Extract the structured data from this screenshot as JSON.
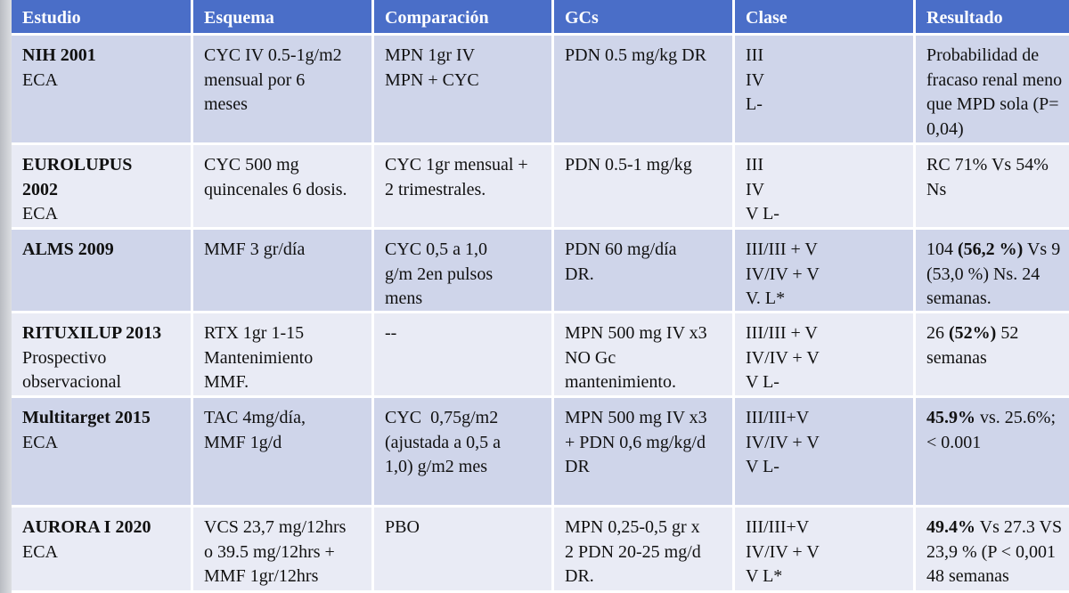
{
  "table": {
    "headers": [
      "Estudio",
      "Esquema",
      "Comparación",
      "GCs",
      "Clase",
      "Resultado"
    ],
    "rows": [
      [
        [
          [
            {
              "text": "NIH 2001",
              "bold": true
            }
          ],
          "ECA"
        ],
        [
          "CYC IV 0.5-1g/m2",
          "mensual por 6",
          "meses"
        ],
        [
          "MPN 1gr IV",
          "MPN + CYC"
        ],
        [
          "PDN 0.5 mg/kg DR"
        ],
        [
          "III",
          "IV",
          "L-"
        ],
        [
          "Probabilidad de",
          "fracaso renal meno",
          "que MPD sola (P=",
          "0,04)"
        ]
      ],
      [
        [
          [
            {
              "text": "EUROLUPUS",
              "bold": true
            }
          ],
          [
            {
              "text": "2002",
              "bold": true
            }
          ],
          "ECA"
        ],
        [
          "CYC 500 mg",
          "quincenales 6 dosis."
        ],
        [
          "CYC 1gr mensual +",
          "2 trimestrales."
        ],
        [
          "PDN 0.5-1 mg/kg"
        ],
        [
          "III",
          "IV",
          "V L-"
        ],
        [
          "RC 71% Vs 54%",
          "Ns"
        ]
      ],
      [
        [
          [
            {
              "text": "ALMS 2009",
              "bold": true
            }
          ]
        ],
        [
          "MMF 3 gr/día"
        ],
        [
          "CYC 0,5 a 1,0",
          "g/m 2en pulsos",
          "mens"
        ],
        [
          "PDN 60 mg/día",
          "DR."
        ],
        [
          "III/III + V",
          "IV/IV + V",
          "V. L*"
        ],
        [
          [
            {
              "text": "104 "
            },
            {
              "text": "(56,2 %)",
              "bold": true
            },
            {
              "text": " Vs 9"
            }
          ],
          "(53,0 %) Ns. 24",
          "semanas."
        ]
      ],
      [
        [
          [
            {
              "text": "RITUXILUP 2013",
              "bold": true
            }
          ],
          "Prospectivo",
          "observacional"
        ],
        [
          "RTX 1gr 1-15",
          "Mantenimiento",
          "MMF."
        ],
        [
          "--"
        ],
        [
          "MPN 500 mg IV x3",
          "NO Gc",
          "mantenimiento."
        ],
        [
          "III/III + V",
          "IV/IV + V",
          "V L-"
        ],
        [
          [
            {
              "text": "26 "
            },
            {
              "text": "(52%)",
              "bold": true
            },
            {
              "text": " 52"
            }
          ],
          "semanas"
        ]
      ],
      [
        [
          [
            {
              "text": "Multitarget 2015",
              "bold": true
            }
          ],
          "ECA"
        ],
        [
          "TAC 4mg/día,",
          "MMF 1g/d"
        ],
        [
          "CYC  0,75g/m2",
          "(ajustada a 0,5 a",
          "1,0) g/m2 mes"
        ],
        [
          "MPN 500 mg IV x3",
          "+ PDN 0,6 mg/kg/d",
          "DR"
        ],
        [
          "III/III+V",
          "IV/IV + V",
          "V L-"
        ],
        [
          [
            {
              "text": "45.9%",
              "bold": true
            },
            {
              "text": " vs. 25.6%;"
            }
          ],
          "< 0.001"
        ]
      ],
      [
        [
          [
            {
              "text": "AURORA I 2020",
              "bold": true
            }
          ],
          "ECA"
        ],
        [
          "VCS 23,7 mg/12hrs",
          "o 39.5 mg/12hrs +",
          "MMF 1gr/12hrs"
        ],
        [
          "PBO"
        ],
        [
          "MPN 0,25-0,5 gr x",
          "2 PDN 20-25 mg/d",
          "DR."
        ],
        [
          "III/III+V",
          "IV/IV + V",
          "V L*"
        ],
        [
          [
            {
              "text": "49.4%",
              "bold": true
            },
            {
              "text": " Vs 27.3 VS"
            }
          ],
          "23,9 % (P < 0,001",
          "48 semanas"
        ]
      ]
    ]
  }
}
